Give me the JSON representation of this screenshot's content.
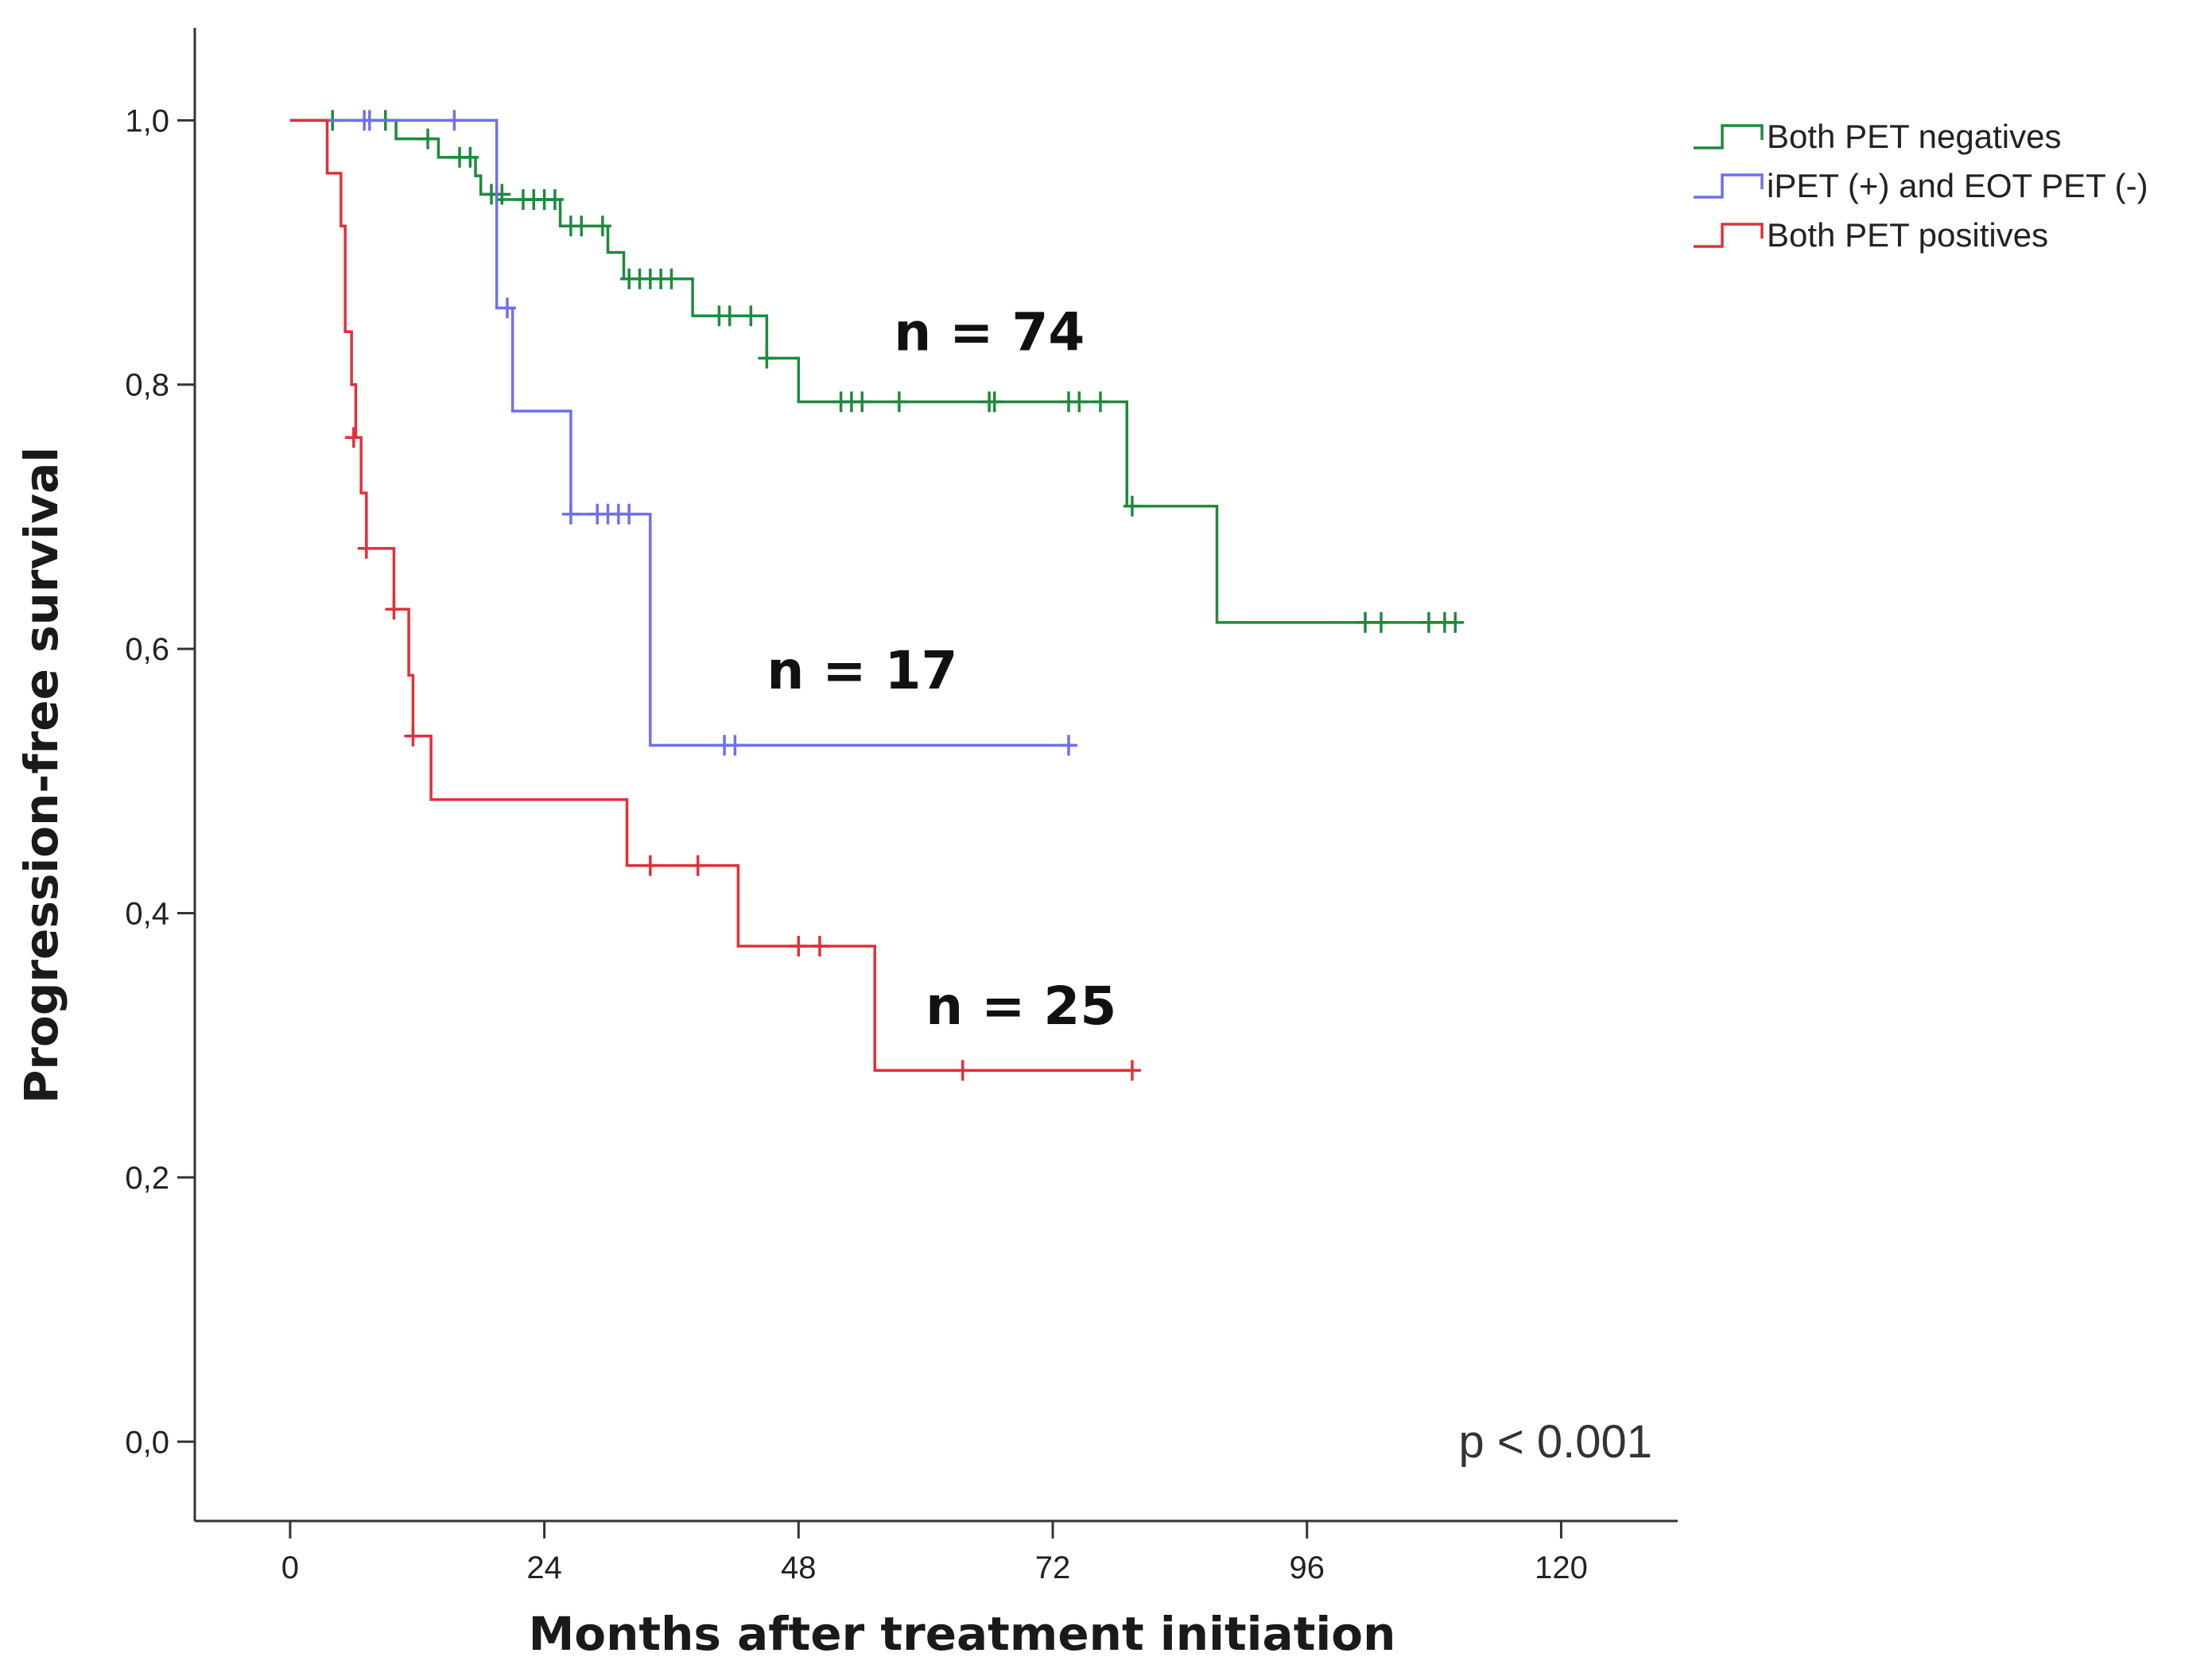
{
  "chart_data": {
    "type": "line",
    "subtype": "kaplan-meier step",
    "xlabel": "Months after treatment initiation",
    "ylabel": "Progression-free survival",
    "xlim": [
      -9,
      131
    ],
    "ylim": [
      -0.06,
      1.07
    ],
    "xticks": [
      "0",
      "24",
      "48",
      "72",
      "96",
      "120"
    ],
    "xtick_values": [
      0,
      24,
      48,
      72,
      96,
      120
    ],
    "yticks": [
      "0,0",
      "0,2",
      "0,4",
      "0,6",
      "0,8",
      "1,0"
    ],
    "ytick_values": [
      0,
      0.2,
      0.4,
      0.6,
      0.8,
      1.0
    ],
    "grid": false,
    "legend_position": "top-right",
    "annotation": "p < 0.001",
    "series": [
      {
        "name": "Both PET negatives",
        "color": "#1e8a3c",
        "n_label": "n = 74",
        "n_label_pos": {
          "x": 57,
          "y": 0.826
        },
        "steps": [
          [
            0,
            1.0
          ],
          [
            10,
            0.986
          ],
          [
            14,
            0.972
          ],
          [
            17.5,
            0.958
          ],
          [
            18,
            0.944
          ],
          [
            19.5,
            0.94
          ],
          [
            25.5,
            0.92
          ],
          [
            30,
            0.9
          ],
          [
            31.5,
            0.88
          ],
          [
            38,
            0.852
          ],
          [
            45,
            0.82
          ],
          [
            48,
            0.787
          ],
          [
            79,
            0.708
          ],
          [
            87.5,
            0.62
          ],
          [
            110,
            0.62
          ]
        ],
        "censored": [
          [
            4,
            1.0
          ],
          [
            9,
            1.0
          ],
          [
            13,
            0.986
          ],
          [
            16,
            0.972
          ],
          [
            17,
            0.972
          ],
          [
            19,
            0.944
          ],
          [
            20,
            0.944
          ],
          [
            22,
            0.94
          ],
          [
            23,
            0.94
          ],
          [
            24,
            0.94
          ],
          [
            25,
            0.94
          ],
          [
            26.5,
            0.92
          ],
          [
            27.5,
            0.92
          ],
          [
            29.5,
            0.92
          ],
          [
            32,
            0.88
          ],
          [
            33,
            0.88
          ],
          [
            34,
            0.88
          ],
          [
            35,
            0.88
          ],
          [
            36,
            0.88
          ],
          [
            40.5,
            0.852
          ],
          [
            41.5,
            0.852
          ],
          [
            43.5,
            0.852
          ],
          [
            45,
            0.82
          ],
          [
            52,
            0.787
          ],
          [
            53,
            0.787
          ],
          [
            54,
            0.787
          ],
          [
            57.5,
            0.787
          ],
          [
            66,
            0.787
          ],
          [
            66.5,
            0.787
          ],
          [
            73.5,
            0.787
          ],
          [
            74.5,
            0.787
          ],
          [
            76.5,
            0.787
          ],
          [
            79.5,
            0.708
          ],
          [
            101.5,
            0.62
          ],
          [
            103,
            0.62
          ],
          [
            107.5,
            0.62
          ],
          [
            109,
            0.62
          ],
          [
            110,
            0.62
          ]
        ]
      },
      {
        "name": "iPET (+) and EOT PET (-)",
        "color": "#6f6ff0",
        "n_label": "n = 17",
        "n_label_pos": {
          "x": 45,
          "y": 0.57
        },
        "steps": [
          [
            0,
            1.0
          ],
          [
            19.5,
            0.858
          ],
          [
            21,
            0.78
          ],
          [
            26.5,
            0.702
          ],
          [
            34,
            0.527
          ],
          [
            74,
            0.527
          ]
        ],
        "censored": [
          [
            7,
            1.0
          ],
          [
            7.5,
            1.0
          ],
          [
            15.5,
            1.0
          ],
          [
            20.5,
            0.858
          ],
          [
            26.5,
            0.702
          ],
          [
            29,
            0.702
          ],
          [
            30,
            0.702
          ],
          [
            31,
            0.702
          ],
          [
            32,
            0.702
          ],
          [
            41,
            0.527
          ],
          [
            42,
            0.527
          ],
          [
            73.5,
            0.527
          ]
        ]
      },
      {
        "name": "Both PET positives",
        "color": "#e0303a",
        "n_label": "n = 25",
        "n_label_pos": {
          "x": 60,
          "y": 0.316
        },
        "steps": [
          [
            0,
            1.0
          ],
          [
            3.5,
            0.96
          ],
          [
            4.8,
            0.92
          ],
          [
            5.2,
            0.84
          ],
          [
            5.8,
            0.8
          ],
          [
            6.2,
            0.76
          ],
          [
            6.7,
            0.718
          ],
          [
            7.2,
            0.676
          ],
          [
            9.8,
            0.63
          ],
          [
            11.2,
            0.58
          ],
          [
            11.6,
            0.534
          ],
          [
            13.3,
            0.486
          ],
          [
            31.8,
            0.436
          ],
          [
            42.3,
            0.375
          ],
          [
            55.2,
            0.281
          ],
          [
            79.5,
            0.281
          ]
        ],
        "censored": [
          [
            6,
            0.76
          ],
          [
            7.2,
            0.676
          ],
          [
            9.8,
            0.63
          ],
          [
            11.6,
            0.534
          ],
          [
            34,
            0.436
          ],
          [
            38.5,
            0.436
          ],
          [
            48,
            0.375
          ],
          [
            50,
            0.375
          ],
          [
            63.5,
            0.281
          ],
          [
            79.5,
            0.281
          ]
        ]
      }
    ]
  }
}
